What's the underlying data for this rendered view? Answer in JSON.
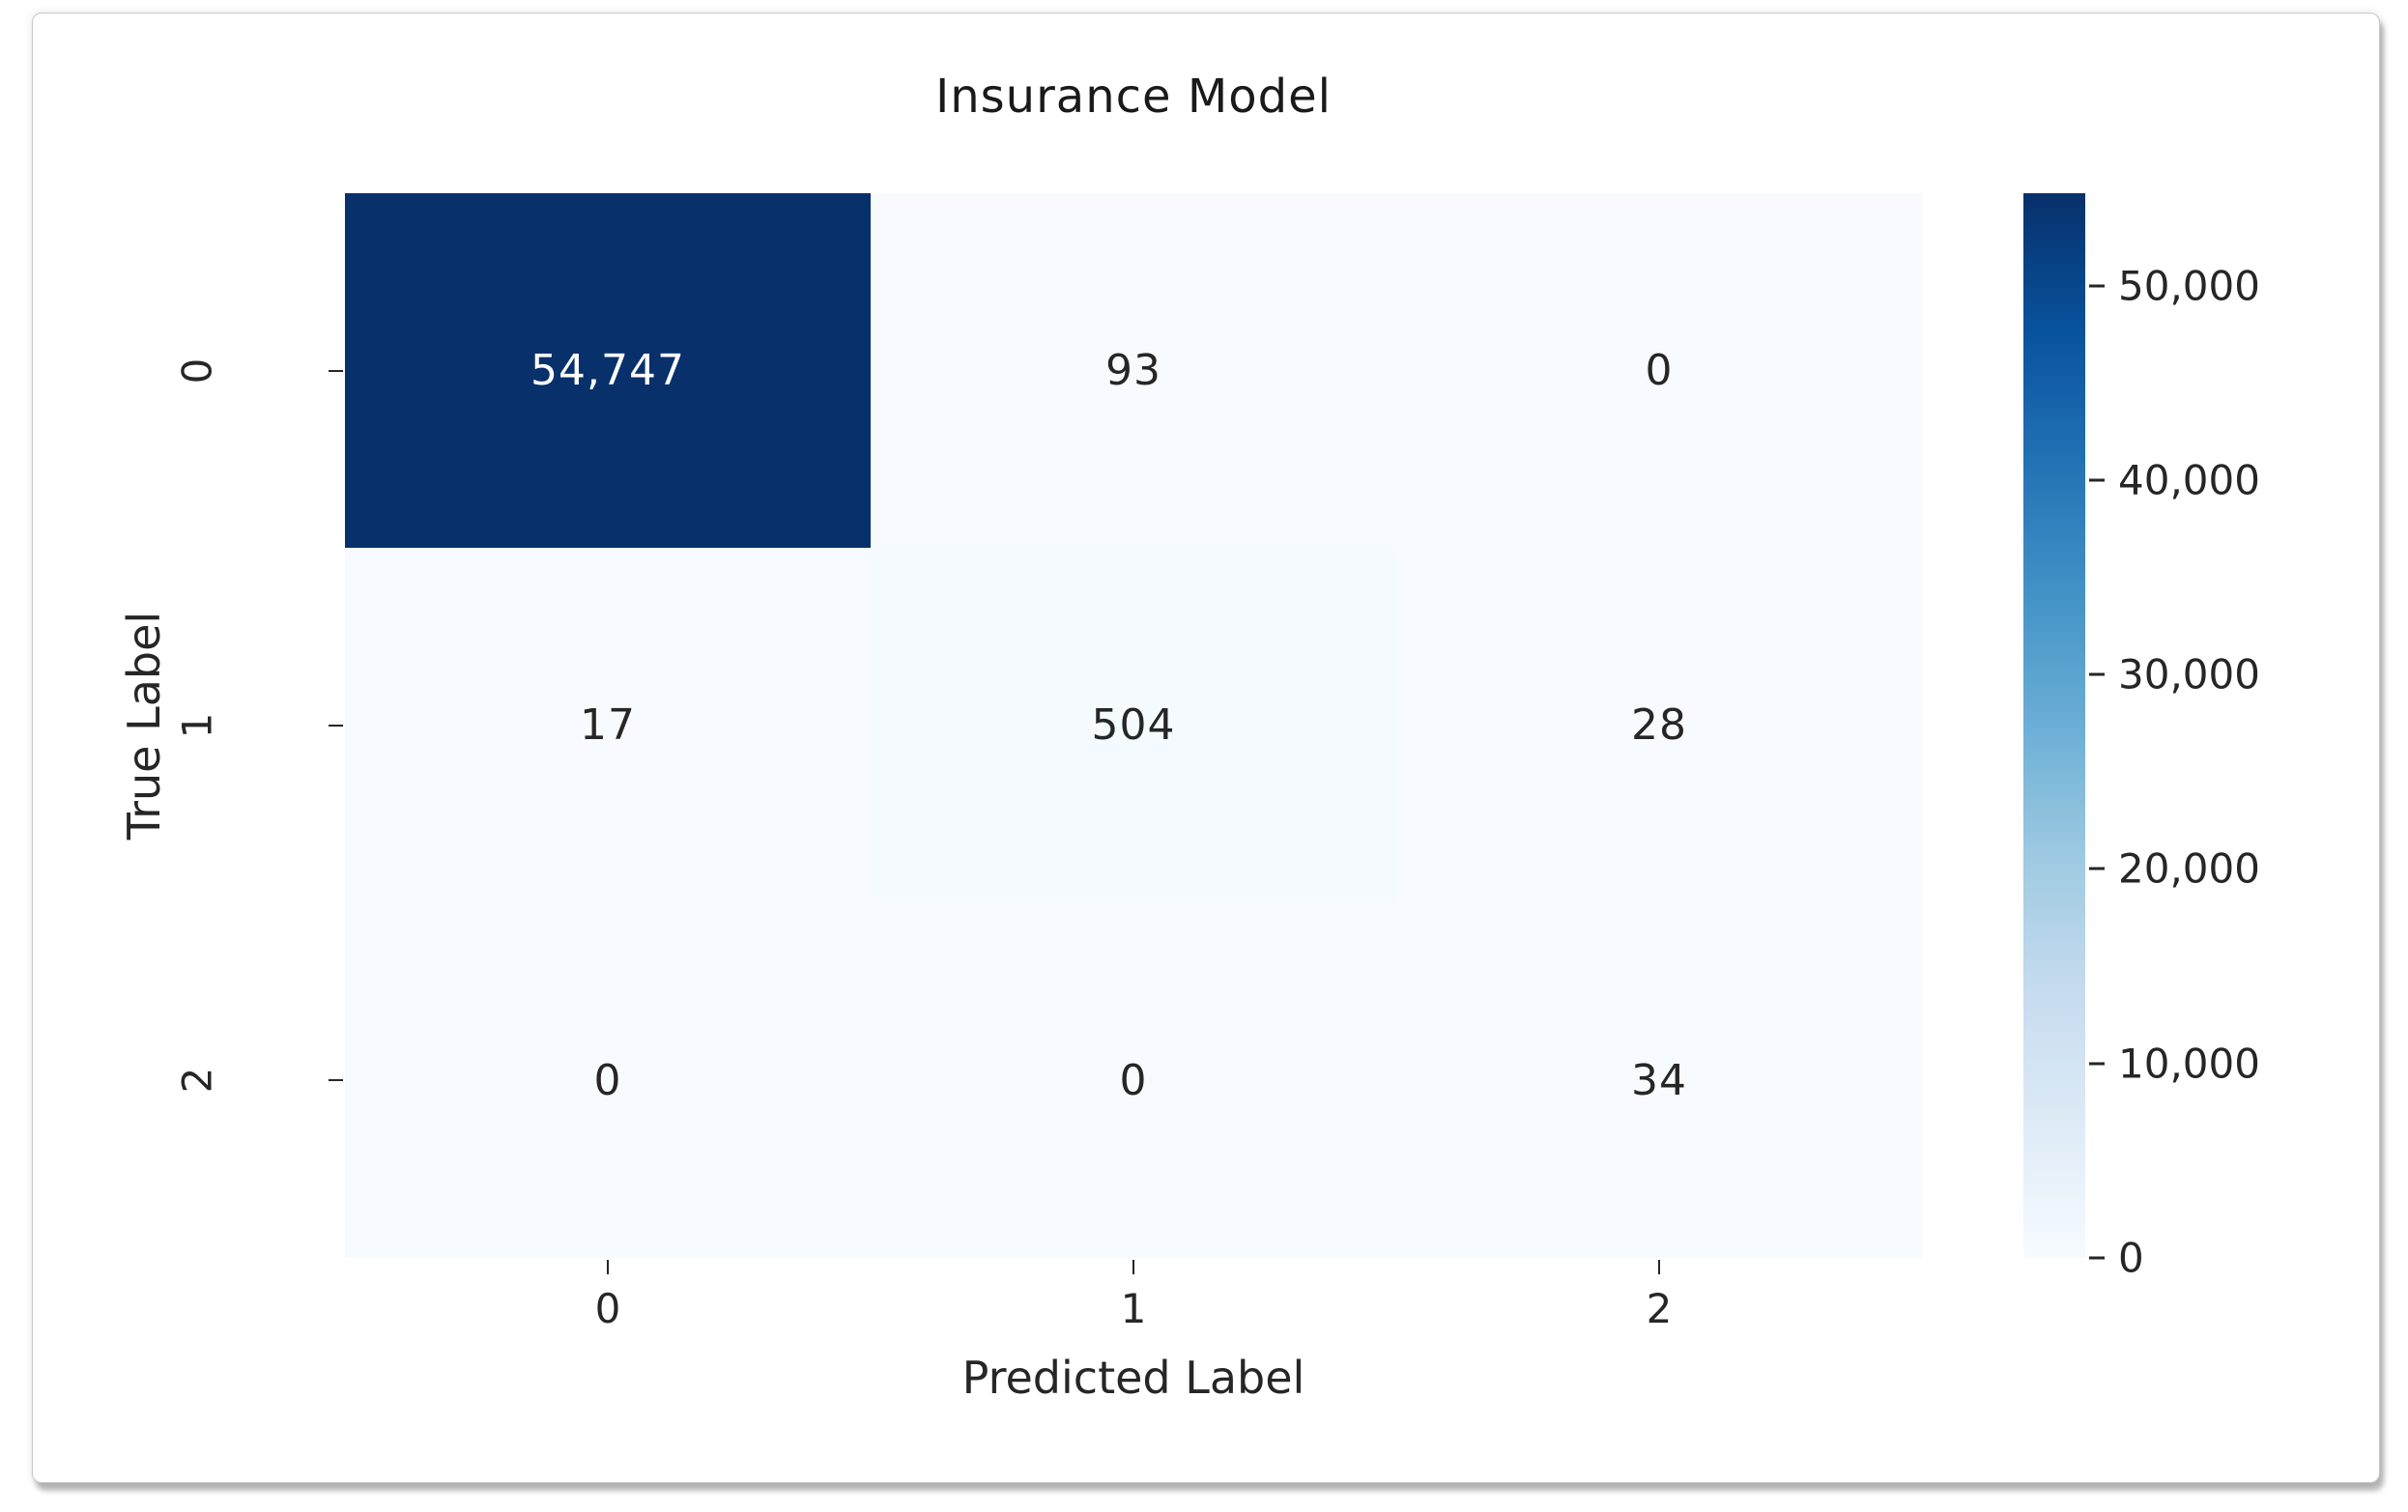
{
  "figure": {
    "title": "Insurance Model",
    "xlabel": "Predicted Label",
    "ylabel": "True Label"
  },
  "chart_data": {
    "type": "heatmap",
    "title": "Insurance Model",
    "xlabel": "Predicted Label",
    "ylabel": "True Label",
    "x_categories": [
      "0",
      "1",
      "2"
    ],
    "y_categories": [
      "0",
      "1",
      "2"
    ],
    "matrix": [
      [
        54747,
        93,
        0
      ],
      [
        17,
        504,
        28
      ],
      [
        0,
        0,
        34
      ]
    ],
    "cell_labels": [
      [
        "54,747",
        "93",
        "0"
      ],
      [
        "17",
        "504",
        "28"
      ],
      [
        "0",
        "0",
        "34"
      ]
    ],
    "vmin": 0,
    "vmax": 54747,
    "colorbar_ticks": [
      {
        "value": 0,
        "label": "0"
      },
      {
        "value": 10000,
        "label": "10,000"
      },
      {
        "value": 20000,
        "label": "20,000"
      },
      {
        "value": 30000,
        "label": "30,000"
      },
      {
        "value": 40000,
        "label": "40,000"
      },
      {
        "value": 50000,
        "label": "50,000"
      }
    ],
    "colormap": {
      "name": "Blues",
      "stops": [
        "#f7fbff",
        "#deebf7",
        "#c6dbef",
        "#9ecae1",
        "#6baed6",
        "#4292c6",
        "#2171b5",
        "#08519c",
        "#08306b"
      ]
    },
    "colors": {
      "annotation_on_dark": "#ffffff",
      "annotation_on_light": "#262626",
      "axis_text": "#262626",
      "title_text": "#1a1a1a"
    },
    "legend_position": "right-colorbar",
    "grid": false
  }
}
